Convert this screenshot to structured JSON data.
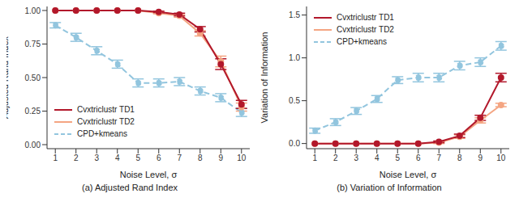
{
  "chart_data": [
    {
      "type": "line",
      "title": "(a) Adjusted Rand Index",
      "x_label": "Noise Level, σ",
      "y_label": "Adjusted Rand Index",
      "x": [
        1,
        2,
        3,
        4,
        5,
        6,
        7,
        8,
        9,
        10
      ],
      "xlim": [
        0.6,
        10.4
      ],
      "xticks": [
        1,
        2,
        3,
        4,
        5,
        6,
        7,
        8,
        9,
        10
      ],
      "ylim": [
        -0.03,
        1.03
      ],
      "yticks": [
        {
          "value": 0,
          "label": "0.00"
        },
        {
          "value": 0.25,
          "label": "0.25"
        },
        {
          "value": 0.5,
          "label": "0.50"
        },
        {
          "value": 0.75,
          "label": "0.75"
        },
        {
          "value": 1,
          "label": "1.00"
        }
      ],
      "grid": false,
      "legend": "lower left",
      "series": [
        {
          "name": "Cvxtriclustr TD1",
          "color": "#b2182b",
          "line_style": "solid",
          "marker": "circle",
          "values": [
            1,
            1,
            1,
            1,
            1,
            0.99,
            0.97,
            0.86,
            0.6,
            0.3
          ],
          "errors": [
            0,
            0,
            0,
            0,
            0,
            0.005,
            0.01,
            0.02,
            0.04,
            0.03
          ]
        },
        {
          "name": "Cvxtriclustr TD2",
          "color": "#f4a582",
          "line_style": "solid",
          "marker": "circle",
          "values": [
            1,
            1,
            1,
            1,
            1,
            0.98,
            0.96,
            0.83,
            0.62,
            0.28
          ],
          "errors": [
            0,
            0,
            0,
            0,
            0,
            0.005,
            0.01,
            0.02,
            0.04,
            0.03
          ]
        },
        {
          "name": "CPD+kmeans",
          "color": "#92c5de",
          "line_style": "dashed",
          "marker": "circle",
          "values": [
            0.89,
            0.8,
            0.7,
            0.6,
            0.46,
            0.46,
            0.47,
            0.4,
            0.35,
            0.24
          ],
          "errors": [
            0.02,
            0.03,
            0.03,
            0.03,
            0.03,
            0.03,
            0.03,
            0.03,
            0.03,
            0.03
          ]
        }
      ]
    },
    {
      "type": "line",
      "title": "(b) Variation of Information",
      "x_label": "Noise Level, σ",
      "y_label": "Variation of Information",
      "x": [
        1,
        2,
        3,
        4,
        5,
        6,
        7,
        8,
        9,
        10
      ],
      "xlim": [
        0.6,
        10.4
      ],
      "xticks": [
        1,
        2,
        3,
        4,
        5,
        6,
        7,
        8,
        9,
        10
      ],
      "ylim": [
        -0.06,
        1.6
      ],
      "yticks": [
        {
          "value": 0,
          "label": "0.0"
        },
        {
          "value": 0.5,
          "label": "0.5"
        },
        {
          "value": 1,
          "label": "1.0"
        },
        1.5
      ],
      "grid": false,
      "legend": "upper left",
      "series": [
        {
          "name": "Cvxtriclustr TD1",
          "color": "#b2182b",
          "line_style": "solid",
          "marker": "circle",
          "values": [
            0,
            0,
            0,
            0,
            0,
            0,
            0.02,
            0.09,
            0.3,
            0.77
          ],
          "errors": [
            0,
            0,
            0,
            0,
            0,
            0,
            0.01,
            0.02,
            0.03,
            0.05
          ]
        },
        {
          "name": "Cvxtriclustr TD2",
          "color": "#f4a582",
          "line_style": "solid",
          "marker": "circle",
          "values": [
            0,
            0,
            0,
            0,
            0,
            0,
            0.01,
            0.08,
            0.27,
            0.45
          ],
          "errors": [
            0,
            0,
            0,
            0,
            0,
            0,
            0.01,
            0.02,
            0.03,
            0.02
          ]
        },
        {
          "name": "CPD+kmeans",
          "color": "#92c5de",
          "line_style": "dashed",
          "marker": "circle",
          "values": [
            0.15,
            0.25,
            0.38,
            0.52,
            0.74,
            0.77,
            0.77,
            0.91,
            0.95,
            1.14
          ],
          "errors": [
            0.03,
            0.04,
            0.04,
            0.04,
            0.04,
            0.05,
            0.05,
            0.05,
            0.05,
            0.05
          ]
        }
      ]
    }
  ]
}
